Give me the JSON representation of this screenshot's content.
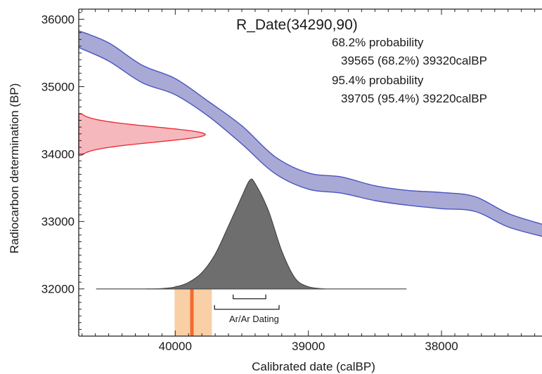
{
  "chart_data": {
    "type": "area",
    "title": "R_Date(34290,90)",
    "xlabel": "Calibrated date (calBP)",
    "ylabel": "Radiocarbon determination (BP)",
    "xlim": [
      40725,
      37245
    ],
    "ylim": [
      31300,
      36150
    ],
    "x_ticks": [
      40000,
      39000,
      38000
    ],
    "y_ticks": [
      32000,
      33000,
      34000,
      35000,
      36000
    ],
    "probability_summary": {
      "line1": "68.2% probability",
      "line2": "39565 (68.2%) 39320calBP",
      "line3": "95.4% probability",
      "line4": "39705 (95.4%) 39220calBP"
    },
    "radiocarbon_measurement": {
      "mean": 34290,
      "sigma": 90
    },
    "calibration_curve": {
      "name": "calibration curve",
      "x": [
        40725,
        40500,
        40250,
        40000,
        39750,
        39500,
        39250,
        39000,
        38750,
        38500,
        38250,
        38000,
        37750,
        37500,
        37245
      ],
      "upper": [
        35830,
        35650,
        35320,
        35120,
        34780,
        34420,
        33960,
        33720,
        33660,
        33530,
        33460,
        33430,
        33370,
        33120,
        32960
      ],
      "lower": [
        35580,
        35380,
        35060,
        34880,
        34560,
        34150,
        33710,
        33480,
        33420,
        33310,
        33240,
        33190,
        33150,
        32920,
        32780
      ]
    },
    "calibrated_distribution": {
      "x": [
        40225,
        40100,
        40000,
        39900,
        39800,
        39700,
        39600,
        39500,
        39440,
        39400,
        39300,
        39200,
        39100,
        39000,
        38870
      ],
      "density": [
        0,
        0.004,
        0.018,
        0.06,
        0.15,
        0.32,
        0.58,
        0.85,
        1.0,
        0.97,
        0.72,
        0.35,
        0.1,
        0.02,
        0
      ]
    },
    "calibrated_baseline": [
      40225,
      38870
    ],
    "range_68": [
      39565,
      39320
    ],
    "range_95": [
      39705,
      39220
    ],
    "ar_ar_dating": {
      "label": "Ar/Ar Dating",
      "range": [
        40005,
        39725
      ],
      "mean": 39875
    },
    "colors": {
      "curve_fill": "#a9a9d6",
      "curve_stroke": "#4a55c0",
      "c14_fill": "#f5b8bd",
      "c14_stroke": "#e8262f",
      "calibrated_fill": "#6e6e6e",
      "ar_fill": "#f9cfa6",
      "ar_line": "#f26b2e"
    }
  }
}
